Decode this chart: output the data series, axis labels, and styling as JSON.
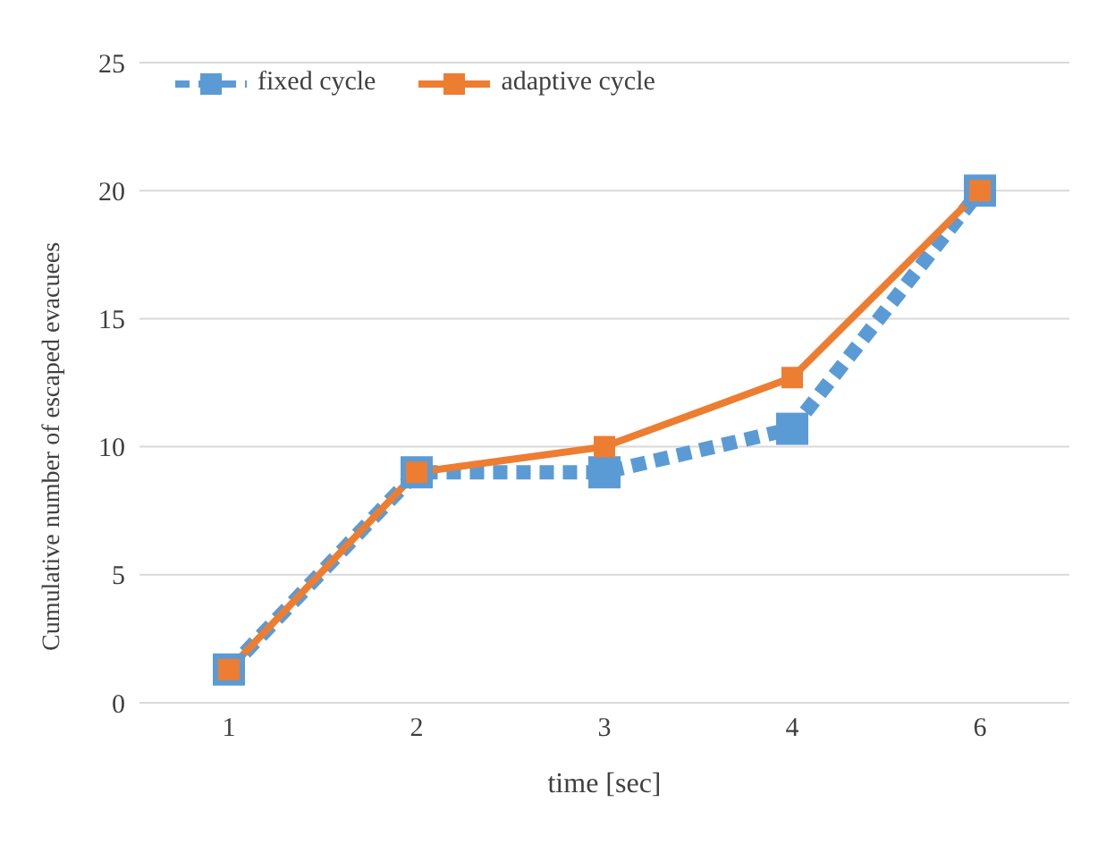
{
  "chart_data": {
    "type": "line",
    "xlabel": "time [sec]",
    "ylabel": "Cumulative number of escaped evacuees",
    "categories": [
      "1",
      "2",
      "3",
      "4",
      "6"
    ],
    "series": [
      {
        "name": "fixed cycle",
        "color": "#5b9bd5",
        "values": [
          1.3,
          9.0,
          9.0,
          10.7,
          20.0
        ],
        "line_style": "dashed"
      },
      {
        "name": "adaptive cycle",
        "color": "#ed7d31",
        "values": [
          1.3,
          9.0,
          10.0,
          12.7,
          20.0
        ],
        "line_style": "solid"
      }
    ],
    "ylim": [
      0,
      25
    ],
    "yticks": [
      0,
      5,
      10,
      15,
      20,
      25
    ],
    "grid": "y",
    "legend": "top left",
    "marker": "square"
  }
}
